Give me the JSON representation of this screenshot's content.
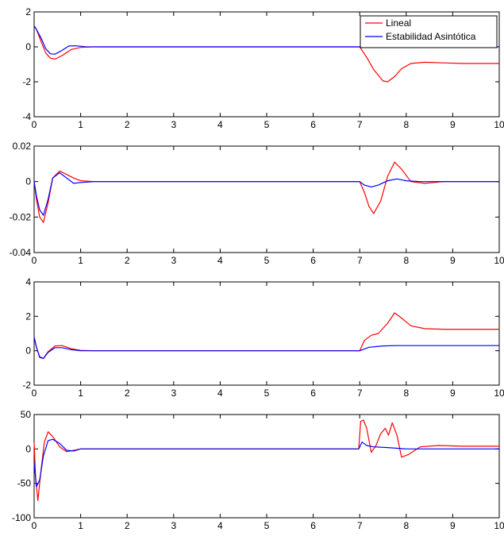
{
  "chart_data": [
    {
      "type": "line",
      "xlim": [
        0,
        10
      ],
      "ylim": [
        -4,
        2
      ],
      "xticks": [
        "0",
        "1",
        "2",
        "3",
        "4",
        "5",
        "6",
        "7",
        "8",
        "9",
        "10"
      ],
      "yticks": [
        "2",
        "0",
        "-2",
        "-4"
      ],
      "grid": false,
      "legend": {
        "placement": "top-right",
        "entries": [
          "Lineal",
          "Estabilidad Asintótica"
        ]
      },
      "series": [
        {
          "name": "Lineal",
          "color": "#ff0000",
          "x": [
            0,
            0.05,
            0.15,
            0.25,
            0.35,
            0.45,
            0.6,
            0.8,
            1.0,
            1.3,
            7.0,
            7.15,
            7.3,
            7.5,
            7.6,
            7.75,
            7.9,
            8.1,
            8.4,
            8.8,
            9.2,
            10
          ],
          "y": [
            1.2,
            1.0,
            0.3,
            -0.35,
            -0.65,
            -0.7,
            -0.5,
            -0.15,
            -0.03,
            0,
            0,
            -0.6,
            -1.3,
            -1.95,
            -2.0,
            -1.7,
            -1.25,
            -0.95,
            -0.88,
            -0.92,
            -0.95,
            -0.95
          ]
        },
        {
          "name": "Estabilidad Asintótica",
          "color": "#0000ff",
          "x": [
            0,
            0.05,
            0.15,
            0.25,
            0.35,
            0.45,
            0.6,
            0.75,
            0.9,
            1.1,
            1.4,
            10
          ],
          "y": [
            1.2,
            1.0,
            0.5,
            -0.1,
            -0.4,
            -0.42,
            -0.2,
            0.05,
            0.06,
            0.01,
            0,
            0
          ]
        }
      ]
    },
    {
      "type": "line",
      "xlim": [
        0,
        10
      ],
      "ylim": [
        -0.04,
        0.02
      ],
      "xticks": [
        "0",
        "1",
        "2",
        "3",
        "4",
        "5",
        "6",
        "7",
        "8",
        "9",
        "10"
      ],
      "yticks": [
        "0.02",
        "0",
        "-0.02",
        "-0.04"
      ],
      "grid": false,
      "series": [
        {
          "name": "",
          "color": "#ff0000",
          "x": [
            0,
            0.05,
            0.12,
            0.2,
            0.3,
            0.4,
            0.55,
            0.7,
            0.85,
            1.0,
            1.3,
            7.0,
            7.1,
            7.2,
            7.3,
            7.45,
            7.6,
            7.75,
            7.9,
            8.1,
            8.4,
            8.8,
            10
          ],
          "y": [
            0,
            -0.01,
            -0.02,
            -0.023,
            -0.012,
            0.002,
            0.006,
            0.004,
            0.002,
            0.0005,
            0,
            0,
            -0.006,
            -0.014,
            -0.018,
            -0.011,
            0.003,
            0.011,
            0.007,
            0.0,
            -0.001,
            0,
            0
          ]
        },
        {
          "name": "",
          "color": "#0000ff",
          "x": [
            0,
            0.05,
            0.12,
            0.2,
            0.3,
            0.4,
            0.55,
            0.7,
            0.85,
            1.0,
            1.3,
            7.0,
            7.1,
            7.25,
            7.4,
            7.6,
            7.8,
            8.0,
            8.3,
            10
          ],
          "y": [
            0,
            -0.008,
            -0.016,
            -0.019,
            -0.01,
            0.002,
            0.005,
            0.002,
            -0.001,
            -0.0005,
            0,
            0,
            -0.002,
            -0.003,
            -0.002,
            0.0005,
            0.0015,
            0.0005,
            0,
            0
          ]
        }
      ]
    },
    {
      "type": "line",
      "xlim": [
        0,
        10
      ],
      "ylim": [
        -2,
        4
      ],
      "xticks": [
        "0",
        "1",
        "2",
        "3",
        "4",
        "5",
        "6",
        "7",
        "8",
        "9",
        "10"
      ],
      "yticks": [
        "4",
        "2",
        "0",
        "-2"
      ],
      "grid": false,
      "series": [
        {
          "name": "",
          "color": "#ff0000",
          "x": [
            0,
            0.05,
            0.12,
            0.2,
            0.3,
            0.45,
            0.6,
            0.8,
            1.0,
            1.3,
            7.0,
            7.1,
            7.25,
            7.4,
            7.5,
            7.6,
            7.75,
            7.9,
            8.1,
            8.4,
            8.8,
            9.2,
            10
          ],
          "y": [
            0.8,
            0.2,
            -0.4,
            -0.45,
            -0.05,
            0.28,
            0.3,
            0.12,
            0.02,
            0,
            0,
            0.6,
            0.9,
            1.0,
            1.3,
            1.6,
            2.2,
            1.9,
            1.45,
            1.28,
            1.25,
            1.25,
            1.25
          ]
        },
        {
          "name": "",
          "color": "#0000ff",
          "x": [
            0,
            0.05,
            0.12,
            0.2,
            0.3,
            0.45,
            0.6,
            0.8,
            1.0,
            1.3,
            7.0,
            7.2,
            7.5,
            7.8,
            8.2,
            10
          ],
          "y": [
            0.8,
            0.2,
            -0.35,
            -0.45,
            -0.1,
            0.18,
            0.18,
            0.06,
            0,
            0,
            0,
            0.2,
            0.28,
            0.3,
            0.3,
            0.3
          ]
        }
      ]
    },
    {
      "type": "line",
      "xlim": [
        0,
        10
      ],
      "ylim": [
        -100,
        50
      ],
      "xticks": [
        "0",
        "1",
        "2",
        "3",
        "4",
        "5",
        "6",
        "7",
        "8",
        "9",
        "10"
      ],
      "yticks": [
        "50",
        "0",
        "-50",
        "-100"
      ],
      "grid": false,
      "series": [
        {
          "name": "",
          "color": "#ff0000",
          "x": [
            0,
            0.03,
            0.08,
            0.15,
            0.22,
            0.3,
            0.4,
            0.55,
            0.7,
            0.85,
            1.0,
            1.3,
            6.98,
            7.02,
            7.08,
            7.15,
            7.25,
            7.35,
            7.45,
            7.55,
            7.62,
            7.7,
            7.8,
            7.9,
            8.05,
            8.3,
            8.7,
            9.2,
            10
          ],
          "y": [
            10,
            -40,
            -75,
            -30,
            10,
            25,
            18,
            3,
            -4,
            -2,
            0,
            0,
            0,
            40,
            42,
            30,
            -5,
            5,
            22,
            30,
            20,
            38,
            20,
            -12,
            -8,
            3,
            5,
            4,
            4
          ]
        },
        {
          "name": "",
          "color": "#0000ff",
          "x": [
            0,
            0.05,
            0.12,
            0.2,
            0.3,
            0.4,
            0.55,
            0.7,
            0.85,
            1.0,
            1.3,
            6.98,
            7.05,
            7.15,
            7.3,
            7.6,
            8.0,
            8.5,
            10
          ],
          "y": [
            -20,
            -55,
            -45,
            -10,
            12,
            14,
            8,
            -2,
            -3,
            0,
            0,
            0,
            10,
            5,
            3,
            2,
            0,
            0,
            0
          ]
        }
      ]
    }
  ]
}
